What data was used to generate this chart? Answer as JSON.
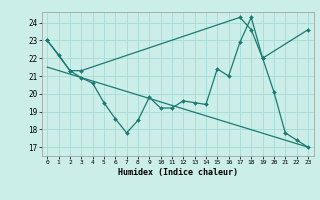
{
  "xlabel": "Humidex (Indice chaleur)",
  "ylabel": "",
  "xlim": [
    -0.5,
    23.5
  ],
  "ylim": [
    16.5,
    24.6
  ],
  "yticks": [
    17,
    18,
    19,
    20,
    21,
    22,
    23,
    24
  ],
  "xticks": [
    0,
    1,
    2,
    3,
    4,
    5,
    6,
    7,
    8,
    9,
    10,
    11,
    12,
    13,
    14,
    15,
    16,
    17,
    18,
    19,
    20,
    21,
    22,
    23
  ],
  "bg_color": "#cceee8",
  "grid_color": "#aaddda",
  "line_color": "#1a7a72",
  "series": [
    {
      "x": [
        0,
        1,
        2,
        3,
        4,
        5,
        6,
        7,
        8,
        9,
        10,
        11,
        12,
        13,
        14,
        15,
        16,
        17,
        18,
        19,
        20,
        21,
        22,
        23
      ],
      "y": [
        23.0,
        22.2,
        21.3,
        20.9,
        20.6,
        19.5,
        18.6,
        17.8,
        18.5,
        19.8,
        19.2,
        19.2,
        19.6,
        19.5,
        19.4,
        21.4,
        21.0,
        22.9,
        24.3,
        22.0,
        20.1,
        17.8,
        17.4,
        17.0
      ]
    },
    {
      "x": [
        0,
        2,
        3,
        17,
        18,
        19,
        23
      ],
      "y": [
        23.0,
        21.3,
        21.3,
        24.3,
        23.6,
        22.0,
        23.6
      ]
    },
    {
      "x": [
        0,
        23
      ],
      "y": [
        21.5,
        17.0
      ]
    }
  ]
}
